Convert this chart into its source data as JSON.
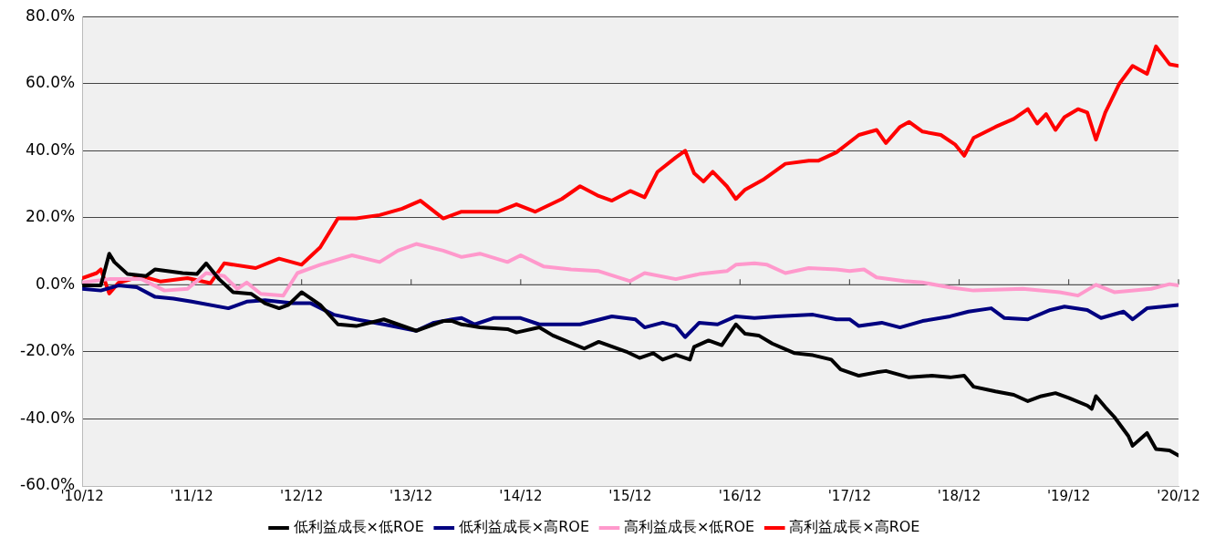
{
  "chart_data": {
    "type": "line",
    "xlim": [
      "2010-12-15",
      "2020-12-15"
    ],
    "xticks": [
      {
        "value": "2010-12-15",
        "label": "'10/12"
      },
      {
        "value": "2011-12-15",
        "label": "'11/12"
      },
      {
        "value": "2012-12-15",
        "label": "'12/12"
      },
      {
        "value": "2013-12-15",
        "label": "'13/12"
      },
      {
        "value": "2014-12-15",
        "label": "'14/12"
      },
      {
        "value": "2015-12-15",
        "label": "'15/12"
      },
      {
        "value": "2016-12-15",
        "label": "'16/12"
      },
      {
        "value": "2017-12-15",
        "label": "'17/12"
      },
      {
        "value": "2018-12-15",
        "label": "'18/12"
      },
      {
        "value": "2019-12-15",
        "label": "'19/12"
      },
      {
        "value": "2020-12-15",
        "label": "'20/12"
      }
    ],
    "ylim": [
      -60,
      80
    ],
    "yticks": [
      {
        "value": -60,
        "label": "-60.0%"
      },
      {
        "value": -40,
        "label": "-40.0%"
      },
      {
        "value": -20,
        "label": "-20.0%"
      },
      {
        "value": 0,
        "label": "0.0%"
      },
      {
        "value": 20,
        "label": "20.0%"
      },
      {
        "value": 40,
        "label": "40.0%"
      },
      {
        "value": 60,
        "label": "60.0%"
      },
      {
        "value": 80,
        "label": "80.0%"
      }
    ],
    "grid": "y",
    "legend": "bottom",
    "marker": "none",
    "line_style": "solid",
    "series": [
      {
        "name": "低利益成長×低ROE",
        "color": "#000000",
        "x": [
          "2010-12-15",
          "2011-02-15",
          "2011-03-15",
          "2011-04-01",
          "2011-05-15",
          "2011-07-15",
          "2011-08-15",
          "2011-11-15",
          "2012-01-01",
          "2012-02-01",
          "2012-03-15",
          "2012-05-01",
          "2012-07-01",
          "2012-08-15",
          "2012-10-01",
          "2012-11-01",
          "2012-12-15",
          "2013-02-15",
          "2013-04-15",
          "2013-06-15",
          "2013-09-15",
          "2014-01-01",
          "2014-04-01",
          "2014-05-01",
          "2014-06-01",
          "2014-08-01",
          "2014-11-01",
          "2014-12-01",
          "2015-02-15",
          "2015-04-01",
          "2015-07-15",
          "2015-09-01",
          "2015-12-01",
          "2016-01-15",
          "2016-03-01",
          "2016-04-01",
          "2016-05-15",
          "2016-07-01",
          "2016-07-15",
          "2016-09-01",
          "2016-10-15",
          "2016-12-01",
          "2017-01-01",
          "2017-02-15",
          "2017-04-01",
          "2017-06-15",
          "2017-08-15",
          "2017-10-15",
          "2017-11-15",
          "2018-01-15",
          "2018-03-15",
          "2018-04-15",
          "2018-07-01",
          "2018-09-15",
          "2018-11-15",
          "2019-01-01",
          "2019-02-01",
          "2019-04-15",
          "2019-06-15",
          "2019-08-01",
          "2019-09-15",
          "2019-11-01",
          "2019-12-15",
          "2020-02-15",
          "2020-03-01",
          "2020-03-15",
          "2020-04-15",
          "2020-05-15",
          "2020-07-01",
          "2020-07-15",
          "2020-09-01",
          "2020-10-01",
          "2020-11-15",
          "2020-12-15"
        ],
        "values": [
          -0.2,
          -0.2,
          9.3,
          6.8,
          3.2,
          2.6,
          4.6,
          3.5,
          3.2,
          6.4,
          1.7,
          -2.2,
          -2.7,
          -5.5,
          -7,
          -6,
          -2.2,
          -6,
          -11.8,
          -12.3,
          -10.3,
          -13.7,
          -10.8,
          -10.8,
          -11.8,
          -12.7,
          -13.2,
          -14.2,
          -12.7,
          -15.1,
          -19,
          -17,
          -19.9,
          -21.8,
          -20.4,
          -22.3,
          -20.9,
          -22.3,
          -18.5,
          -16.6,
          -18,
          -11.8,
          -14.6,
          -15.1,
          -17.5,
          -20.4,
          -21,
          -22.3,
          -25.2,
          -27.1,
          -26.1,
          -25.7,
          -27.6,
          -27.1,
          -27.6,
          -27.1,
          -30.4,
          -31.8,
          -32.8,
          -34.7,
          -33.2,
          -32.3,
          -33.7,
          -36,
          -37,
          -33.2,
          -36.5,
          -39.4,
          -45.1,
          -48,
          -44.2,
          -49,
          -49.4,
          -50.9
        ]
      },
      {
        "name": "低利益成長×高ROE",
        "color": "#000080",
        "x": [
          "2010-12-15",
          "2011-02-15",
          "2011-04-15",
          "2011-06-15",
          "2011-08-15",
          "2011-10-15",
          "2011-12-15",
          "2012-04-15",
          "2012-06-15",
          "2012-08-15",
          "2012-11-15",
          "2013-01-15",
          "2013-04-01",
          "2013-06-15",
          "2013-09-15",
          "2014-01-01",
          "2014-03-01",
          "2014-05-01",
          "2014-06-01",
          "2014-07-15",
          "2014-09-15",
          "2014-12-15",
          "2015-02-15",
          "2015-07-01",
          "2015-10-15",
          "2016-01-01",
          "2016-02-01",
          "2016-04-01",
          "2016-05-15",
          "2016-06-15",
          "2016-08-01",
          "2016-10-01",
          "2016-12-01",
          "2017-02-01",
          "2017-04-15",
          "2017-08-15",
          "2017-11-01",
          "2017-12-15",
          "2018-01-15",
          "2018-04-01",
          "2018-06-01",
          "2018-08-15",
          "2018-11-15",
          "2019-01-15",
          "2019-04-01",
          "2019-05-15",
          "2019-08-01",
          "2019-10-15",
          "2019-12-01",
          "2020-02-15",
          "2020-04-01",
          "2020-06-15",
          "2020-07-15",
          "2020-09-01",
          "2020-12-15"
        ],
        "values": [
          -1.2,
          -1.7,
          -0.2,
          -0.7,
          -3.6,
          -4.1,
          -5,
          -7,
          -5,
          -4.6,
          -5.5,
          -5.5,
          -8.9,
          -10.3,
          -11.8,
          -13.7,
          -11.3,
          -10.3,
          -9.9,
          -11.8,
          -9.9,
          -9.9,
          -11.8,
          -11.8,
          -9.4,
          -10.3,
          -12.7,
          -11.3,
          -12.3,
          -15.6,
          -11.3,
          -11.8,
          -9.4,
          -9.9,
          -9.4,
          -8.9,
          -10.3,
          -10.3,
          -12.3,
          -11.3,
          -12.7,
          -10.8,
          -9.4,
          -8,
          -7,
          -9.9,
          -10.3,
          -7.5,
          -6.5,
          -7.5,
          -9.9,
          -8,
          -10.3,
          -7,
          -6
        ]
      },
      {
        "name": "高利益成長×低ROE",
        "color": "#ff99cc",
        "x": [
          "2010-12-15",
          "2011-03-15",
          "2011-07-01",
          "2011-09-15",
          "2011-12-01",
          "2012-02-01",
          "2012-04-01",
          "2012-05-15",
          "2012-06-15",
          "2012-08-01",
          "2012-10-15",
          "2012-12-01",
          "2013-02-15",
          "2013-06-01",
          "2013-09-01",
          "2013-11-01",
          "2014-01-01",
          "2014-04-01",
          "2014-06-01",
          "2014-08-01",
          "2014-11-01",
          "2014-12-15",
          "2015-03-01",
          "2015-06-01",
          "2015-09-01",
          "2015-12-15",
          "2016-02-01",
          "2016-05-15",
          "2016-08-01",
          "2016-11-01",
          "2016-12-01",
          "2017-02-01",
          "2017-03-15",
          "2017-05-15",
          "2017-08-01",
          "2017-11-01",
          "2017-12-15",
          "2018-02-01",
          "2018-03-15",
          "2018-06-15",
          "2018-08-15",
          "2018-11-15",
          "2019-02-01",
          "2019-07-15",
          "2019-11-15",
          "2020-01-15",
          "2020-03-15",
          "2020-05-15",
          "2020-09-15",
          "2020-11-15",
          "2020-12-15"
        ],
        "values": [
          0.7,
          1.7,
          1.7,
          -1.7,
          -1.2,
          3.5,
          2.6,
          -1.2,
          0.7,
          -2.7,
          -3.2,
          3.5,
          6,
          8.8,
          6.8,
          10.2,
          12.2,
          10.2,
          8.3,
          9.3,
          6.8,
          8.8,
          5.5,
          4.6,
          4.1,
          1.1,
          3.5,
          1.7,
          3.2,
          4.1,
          6,
          6.4,
          6,
          3.5,
          5,
          4.6,
          4.1,
          4.6,
          2.2,
          1.1,
          0.7,
          -0.8,
          -1.7,
          -1.2,
          -2.2,
          -3.2,
          0,
          -2.2,
          -1.2,
          0.2,
          -0.2
        ]
      },
      {
        "name": "高利益成長×高ROE",
        "color": "#ff0000",
        "x": [
          "2010-12-15",
          "2011-02-01",
          "2011-02-15",
          "2011-03-15",
          "2011-04-15",
          "2011-07-01",
          "2011-09-01",
          "2011-12-01",
          "2012-02-15",
          "2012-04-01",
          "2012-07-15",
          "2012-10-01",
          "2012-12-15",
          "2013-02-15",
          "2013-04-15",
          "2013-06-15",
          "2013-09-01",
          "2013-11-15",
          "2014-01-15",
          "2014-04-01",
          "2014-06-01",
          "2014-10-01",
          "2014-12-01",
          "2015-02-01",
          "2015-05-01",
          "2015-07-01",
          "2015-09-01",
          "2015-10-15",
          "2015-12-15",
          "2016-02-01",
          "2016-03-15",
          "2016-05-15",
          "2016-06-15",
          "2016-07-15",
          "2016-08-15",
          "2016-09-15",
          "2016-11-01",
          "2016-12-01",
          "2017-01-01",
          "2017-03-01",
          "2017-05-15",
          "2017-08-01",
          "2017-09-01",
          "2017-11-01",
          "2018-01-15",
          "2018-03-15",
          "2018-04-15",
          "2018-06-01",
          "2018-07-01",
          "2018-08-15",
          "2018-10-15",
          "2018-12-01",
          "2019-01-01",
          "2019-02-01",
          "2019-04-15",
          "2019-06-15",
          "2019-08-01",
          "2019-09-01",
          "2019-10-01",
          "2019-11-01",
          "2019-12-01",
          "2020-01-15",
          "2020-02-15",
          "2020-03-15",
          "2020-04-15",
          "2020-06-01",
          "2020-07-15",
          "2020-09-01",
          "2020-10-01",
          "2020-11-15",
          "2020-12-15"
        ],
        "values": [
          2,
          3.5,
          4.6,
          -2.6,
          0.6,
          2.6,
          1,
          2,
          0.5,
          6.4,
          5,
          7.8,
          6,
          11.2,
          19.8,
          19.8,
          20.8,
          22.7,
          25.1,
          19.8,
          21.8,
          21.8,
          24,
          21.8,
          25.6,
          29.4,
          26.5,
          25.1,
          28,
          26.1,
          33.7,
          38,
          40,
          33.3,
          30.8,
          33.7,
          29.4,
          25.6,
          28.4,
          31.3,
          36.1,
          37,
          37,
          39.5,
          44.7,
          46.2,
          42.3,
          47.1,
          48.6,
          45.7,
          44.7,
          41.9,
          38.5,
          43.8,
          47.1,
          49.5,
          52.4,
          48.1,
          50.9,
          46.2,
          50,
          52.4,
          51.4,
          43.3,
          51.4,
          60,
          65.3,
          62.9,
          71.1,
          65.8,
          65.3
        ]
      }
    ]
  }
}
